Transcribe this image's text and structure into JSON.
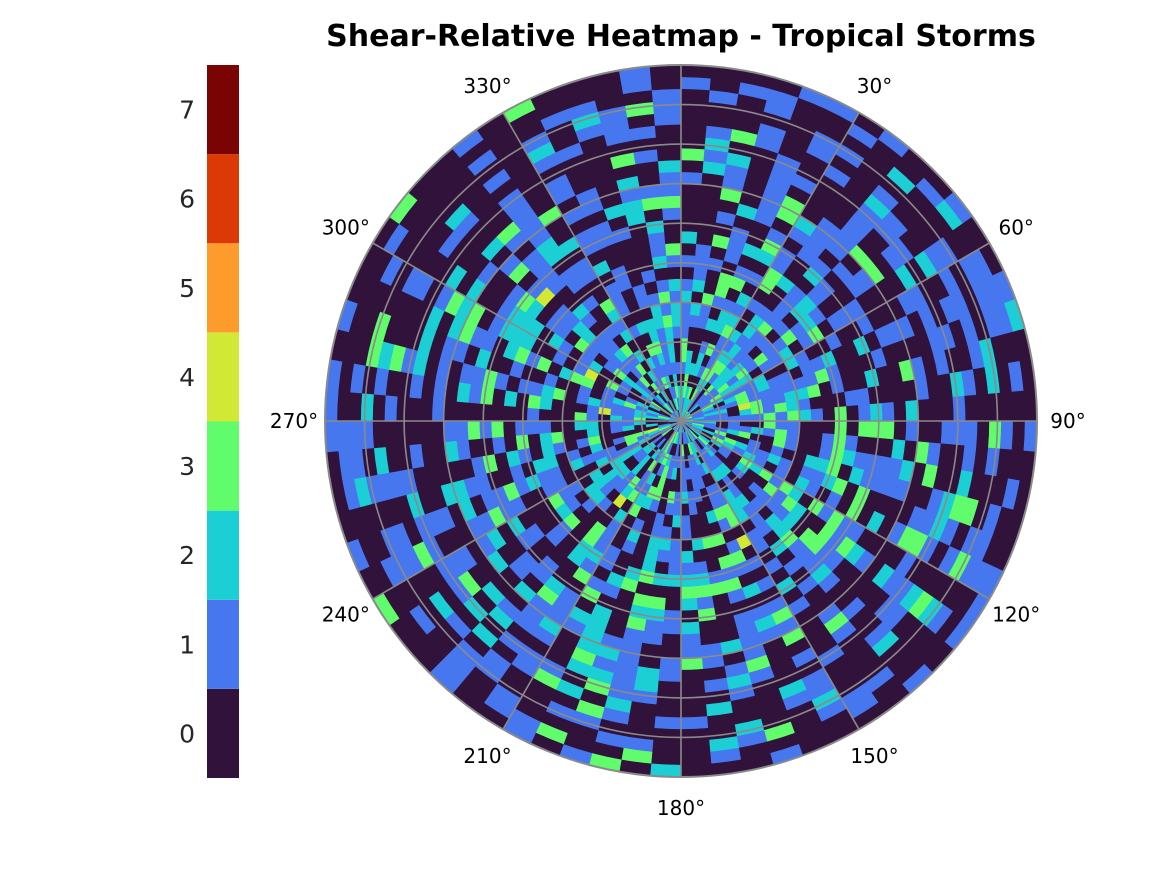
{
  "chart_data": {
    "type": "heatmap",
    "projection": "polar",
    "title": "Shear-Relative Heatmap - Tropical Storms",
    "theta_zero_location": "N",
    "theta_direction": "clockwise",
    "theta_ticks_deg": [
      0,
      30,
      60,
      90,
      120,
      150,
      180,
      210,
      240,
      270,
      300,
      330
    ],
    "theta_tick_labels": [
      "",
      "30°",
      "60°",
      "90°",
      "120°",
      "150°",
      "180°",
      "210°",
      "240°",
      "270°",
      "300°",
      "330°"
    ],
    "radial_gridlines": 9,
    "radial_bins": 30,
    "angular_bins": 72,
    "radial_tick_labels_shown": false,
    "grid": true,
    "colormap": "turbo",
    "colorbar": {
      "position": "left",
      "ticks": [
        0,
        1,
        2,
        3,
        4,
        5,
        6,
        7
      ],
      "tick_labels": [
        "0",
        "1",
        "2",
        "3",
        "4",
        "5",
        "6",
        "7"
      ],
      "range": [
        -0.5,
        7.5
      ],
      "discrete_levels": [
        {
          "value": 0,
          "color": "#30123b"
        },
        {
          "value": 1,
          "color": "#4777ef"
        },
        {
          "value": 2,
          "color": "#1bcfd4"
        },
        {
          "value": 3,
          "color": "#61fc6c"
        },
        {
          "value": 4,
          "color": "#d1e834"
        },
        {
          "value": 5,
          "color": "#fe9b2d"
        },
        {
          "value": 6,
          "color": "#db3a07"
        },
        {
          "value": 7,
          "color": "#7a0403"
        }
      ]
    },
    "value_distribution_note_free": [
      0,
      1,
      2,
      3,
      4,
      5,
      6
    ]
  },
  "colors": {
    "background": "#ffffff",
    "grid": "#8a8a8a",
    "text": "#000000",
    "colorbar_text": "#262626"
  }
}
